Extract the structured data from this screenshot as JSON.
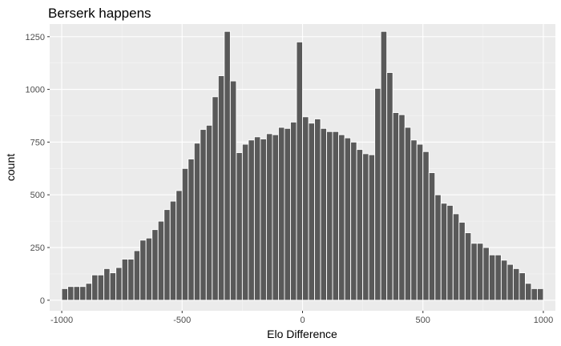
{
  "chart_data": {
    "type": "bar",
    "title": "Berserk happens",
    "xlabel": "Elo Difference",
    "ylabel": "count",
    "xlim": [
      -1050,
      1050
    ],
    "ylim": [
      -50,
      1310
    ],
    "xticks": [
      -1000,
      -500,
      0,
      500,
      1000
    ],
    "yticks": [
      0,
      250,
      500,
      750,
      1000,
      1250
    ],
    "grid": true,
    "legend": "none",
    "bin_width": 25,
    "x": [
      -987.5,
      -962.5,
      -937.5,
      -912.5,
      -887.5,
      -862.5,
      -837.5,
      -812.5,
      -787.5,
      -762.5,
      -737.5,
      -712.5,
      -687.5,
      -662.5,
      -637.5,
      -612.5,
      -587.5,
      -562.5,
      -537.5,
      -512.5,
      -487.5,
      -462.5,
      -437.5,
      -412.5,
      -387.5,
      -362.5,
      -337.5,
      -312.5,
      -287.5,
      -262.5,
      -237.5,
      -212.5,
      -187.5,
      -162.5,
      -137.5,
      -112.5,
      -87.5,
      -62.5,
      -37.5,
      -12.5,
      12.5,
      37.5,
      62.5,
      87.5,
      112.5,
      137.5,
      162.5,
      187.5,
      212.5,
      237.5,
      262.5,
      287.5,
      312.5,
      337.5,
      362.5,
      387.5,
      412.5,
      437.5,
      462.5,
      487.5,
      512.5,
      537.5,
      562.5,
      587.5,
      612.5,
      637.5,
      662.5,
      687.5,
      712.5,
      737.5,
      762.5,
      787.5,
      812.5,
      837.5,
      862.5,
      887.5,
      912.5,
      937.5,
      962.5,
      987.5
    ],
    "values": [
      55,
      65,
      65,
      65,
      80,
      120,
      120,
      150,
      130,
      155,
      195,
      195,
      235,
      285,
      295,
      335,
      375,
      430,
      470,
      520,
      625,
      670,
      745,
      810,
      830,
      965,
      1065,
      1275,
      1040,
      700,
      740,
      760,
      775,
      765,
      790,
      785,
      820,
      815,
      845,
      1225,
      870,
      840,
      860,
      815,
      800,
      800,
      785,
      770,
      750,
      715,
      695,
      690,
      1005,
      1275,
      1080,
      890,
      880,
      820,
      760,
      740,
      705,
      605,
      500,
      460,
      450,
      410,
      370,
      320,
      270,
      270,
      250,
      215,
      215,
      190,
      170,
      150,
      130,
      80,
      55,
      55
    ]
  },
  "colors": {
    "bar": "#595959",
    "panel": "#ebebeb",
    "grid_major": "#ffffff",
    "grid_minor": "#f5f5f5",
    "tick_text": "#4d4d4d",
    "tick_mark": "#333333"
  }
}
